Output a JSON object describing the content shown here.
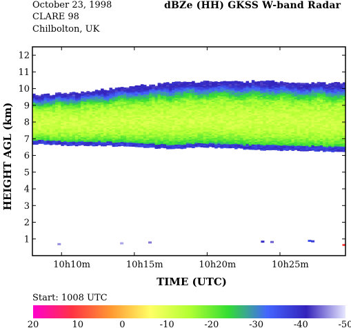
{
  "header": {
    "date": "October 23, 1998",
    "campaign": "CLARE 98",
    "location": "Chilbolton, UK",
    "title": "dBZe (HH)   GKSS  W-band Radar"
  },
  "chart_data": {
    "type": "heatmap",
    "title": "dBZe (HH)   GKSS  W-band Radar",
    "xlabel": "TIME (UTC)",
    "ylabel": "HEIGHT AGL (km)",
    "x_range": [
      "10h08m",
      "10h29.5m"
    ],
    "x_ticks": [
      "10h10m",
      "10h15m",
      "10h20m",
      "10h25m"
    ],
    "ylim": [
      0,
      12.5
    ],
    "y_ticks": [
      1,
      2,
      3,
      4,
      5,
      6,
      7,
      8,
      9,
      10,
      11,
      12
    ],
    "start_label": "Start: 1008 UTC",
    "colorbar": {
      "ticks": [
        20,
        10,
        0,
        -10,
        -20,
        -30,
        -40,
        -50
      ],
      "colors": [
        "#ff00cc",
        "#ff3344",
        "#ff9933",
        "#ffff66",
        "#b3ff33",
        "#33dd33",
        "#4466ff",
        "#3322bb",
        "#e8e8ff"
      ]
    },
    "cloud_layer": {
      "base_km": [
        6.7,
        6.6,
        6.6,
        6.5,
        6.4,
        6.5,
        6.4,
        6.3,
        6.3,
        6.2
      ],
      "top_km": [
        9.6,
        9.7,
        9.9,
        10.1,
        10.3,
        10.4,
        10.4,
        10.4,
        10.3,
        10.3
      ],
      "core_dbz": -12,
      "edge_dbz": -40
    }
  }
}
